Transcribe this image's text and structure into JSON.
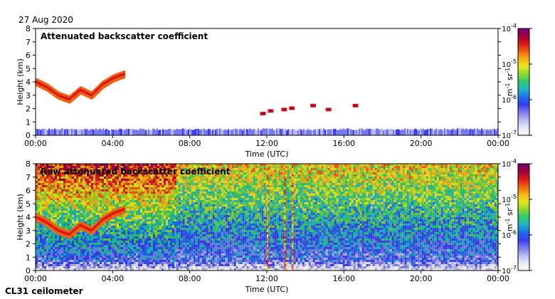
{
  "date": "27 Aug 2020",
  "instrument": "CL31 ceilometer",
  "chart_data": [
    {
      "type": "heatmap",
      "title": "Attenuated backscatter coefficient",
      "xlabel": "Time (UTC)",
      "ylabel": "Height (km)",
      "x_ticks": [
        "00:00",
        "04:00",
        "08:00",
        "12:00",
        "16:00",
        "20:00",
        "00:00"
      ],
      "xlim_hours": [
        0,
        24
      ],
      "y_ticks": [
        0,
        1,
        2,
        3,
        4,
        5,
        6,
        7,
        8
      ],
      "ylim": [
        0,
        8
      ],
      "colorbar": {
        "label": "m-1 sr-1",
        "scale": "log",
        "range": [
          1e-07,
          0.0001
        ],
        "ticks": [
          "10-7",
          "10-6",
          "10-5",
          "10-4"
        ]
      },
      "features": [
        {
          "kind": "surface-layer",
          "time_range_h": [
            0,
            24
          ],
          "height_range_km": [
            0,
            0.45
          ],
          "level": "low"
        },
        {
          "kind": "cloud",
          "time_range_h": [
            0,
            4.6
          ],
          "height_km": [
            4.0,
            3.6,
            3.0,
            2.7,
            3.4,
            3.0,
            3.8,
            4.3,
            4.6
          ],
          "level": "high"
        },
        {
          "kind": "cloud",
          "time_h": [
            11.8,
            12.2,
            12.9,
            13.3,
            14.4,
            15.2,
            16.6
          ],
          "height_km": [
            1.6,
            1.8,
            1.9,
            2.0,
            2.2,
            1.9,
            2.2
          ],
          "level": "high"
        }
      ]
    },
    {
      "type": "heatmap",
      "title": "Raw attenuated backscatter coefficient",
      "xlabel": "Time (UTC)",
      "ylabel": "Height (km)",
      "x_ticks": [
        "00:00",
        "04:00",
        "08:00",
        "12:00",
        "16:00",
        "20:00",
        "00:00"
      ],
      "xlim_hours": [
        0,
        24
      ],
      "y_ticks": [
        0,
        1,
        2,
        3,
        4,
        5,
        6,
        7,
        8
      ],
      "ylim": [
        0,
        8
      ],
      "colorbar": {
        "label": "m-1 sr-1",
        "scale": "log",
        "range": [
          1e-07,
          0.0001
        ],
        "ticks": [
          "10-7",
          "10-6",
          "10-5",
          "10-4"
        ]
      },
      "features": [
        {
          "kind": "noise",
          "time_range_h": [
            0,
            7.3
          ],
          "level": "high"
        },
        {
          "kind": "noise",
          "time_range_h": [
            7.3,
            24
          ],
          "level": "medium"
        },
        {
          "kind": "cloud",
          "time_range_h": [
            0,
            4.6
          ],
          "height_km": [
            4.0,
            3.6,
            3.0,
            2.7,
            3.4,
            3.0,
            3.8,
            4.3,
            4.6
          ],
          "level": "high"
        },
        {
          "kind": "precip-streak",
          "time_h": [
            12.0,
            12.9,
            13.3
          ],
          "level": "high"
        }
      ]
    }
  ],
  "colormap": [
    "#ffffff",
    "#e6e6f8",
    "#b8b8f0",
    "#7a7af0",
    "#3c3cf0",
    "#1e6ee8",
    "#20b4c8",
    "#30c870",
    "#88d830",
    "#e8e820",
    "#f8b018",
    "#f06010",
    "#d81818",
    "#a00040",
    "#700070"
  ]
}
